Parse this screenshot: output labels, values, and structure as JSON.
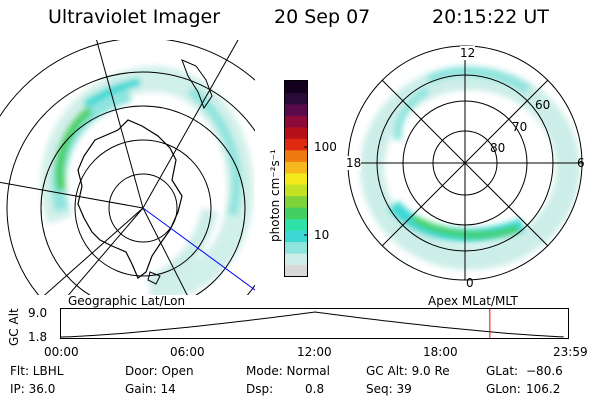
{
  "header": {
    "instrument": "Ultraviolet Imager",
    "date": "20 Sep 07",
    "time": "20:15:22 UT"
  },
  "colorbar": {
    "unit_label": "photon cm⁻²s⁻¹",
    "ticks": [
      "100",
      "10"
    ],
    "colors": [
      "#d8d8d8",
      "#cdeee8",
      "#8fe4de",
      "#3ed8d4",
      "#2ce0a8",
      "#44d060",
      "#7ed23a",
      "#c4e224",
      "#f2e81c",
      "#f6b81c",
      "#ee7a10",
      "#de2a10",
      "#b8101a",
      "#8c0a3a",
      "#5a0a4c",
      "#2a0a36",
      "#12001c"
    ]
  },
  "geo_map": {
    "label": "Geographic Lat/Lon"
  },
  "apex_map": {
    "label": "Apex MLat/MLT",
    "mlt_labels": [
      "12",
      "18",
      "6",
      "0"
    ],
    "lat_labels": [
      "60",
      "70",
      "80"
    ]
  },
  "altitude_plot": {
    "axis_title": "GC Alt",
    "y_ticks": [
      "9.0",
      "1.8"
    ],
    "x_ticks": [
      "00:00",
      "06:00",
      "12:00",
      "18:00",
      "23:59"
    ],
    "y_range": [
      1.8,
      9.0
    ],
    "marker_time_hours": 20.26,
    "marker_color": "#ff0000",
    "min_time_hours": 12.0
  },
  "footer": {
    "filter": "Flt: LBHL",
    "ip": "IP: 36.0",
    "door": "Door: Open",
    "gain": "Gain: 14",
    "mode": "Mode: Normal",
    "dsp_label": "Dsp:",
    "dsp_value": "0.8",
    "gc_alt": "GC Alt: 9.0 Re",
    "seq": "Seq: 39",
    "glat_label": "GLat:",
    "glat_value": "−80.6",
    "glon_label": "GLon:",
    "glon_value": "106.2"
  }
}
